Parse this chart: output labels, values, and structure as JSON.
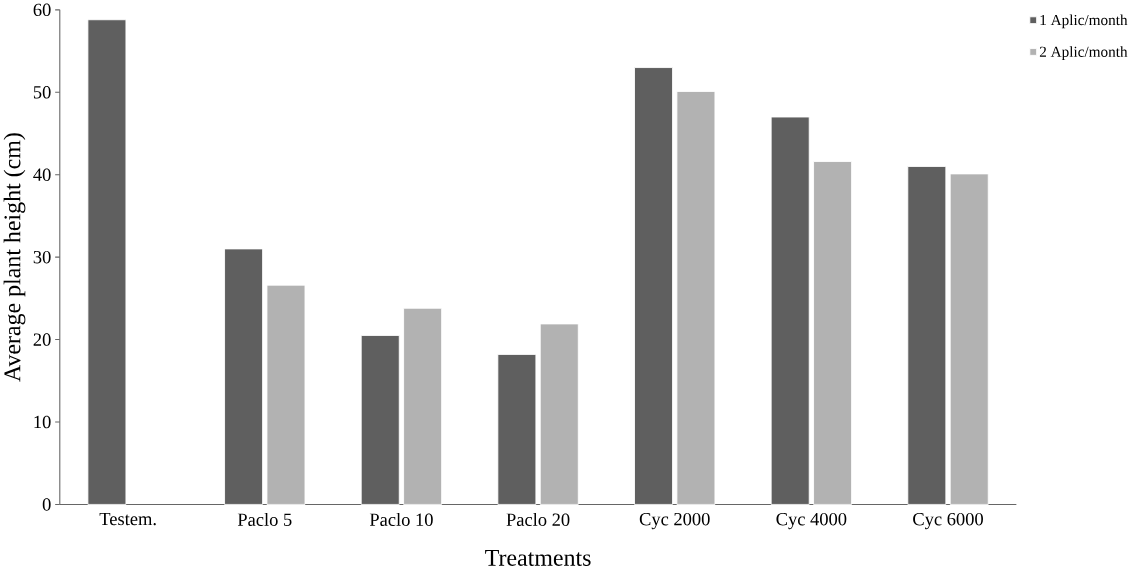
{
  "chart_data": {
    "type": "bar",
    "xlabel": "Treatments",
    "ylabel": "Average plant height (cm)",
    "categories": [
      "Testem.",
      "Paclo 5",
      "Paclo 10",
      "Paclo 20",
      "Cyc 2000",
      "Cyc 4000",
      "Cyc 6000"
    ],
    "series": [
      {
        "name": "1 Aplic/month",
        "color": "#5f5f5f",
        "values": [
          58.8,
          31.0,
          20.5,
          18.2,
          53.0,
          47.0,
          41.0
        ]
      },
      {
        "name": "2 Aplic/month",
        "color": "#b2b2b2",
        "values": [
          null,
          26.6,
          23.8,
          21.9,
          50.1,
          41.6,
          40.1
        ]
      }
    ],
    "ylim": [
      0,
      60
    ],
    "yticks": [
      0,
      10,
      20,
      30,
      40,
      50,
      60
    ],
    "grid": false,
    "legend": "top right"
  }
}
